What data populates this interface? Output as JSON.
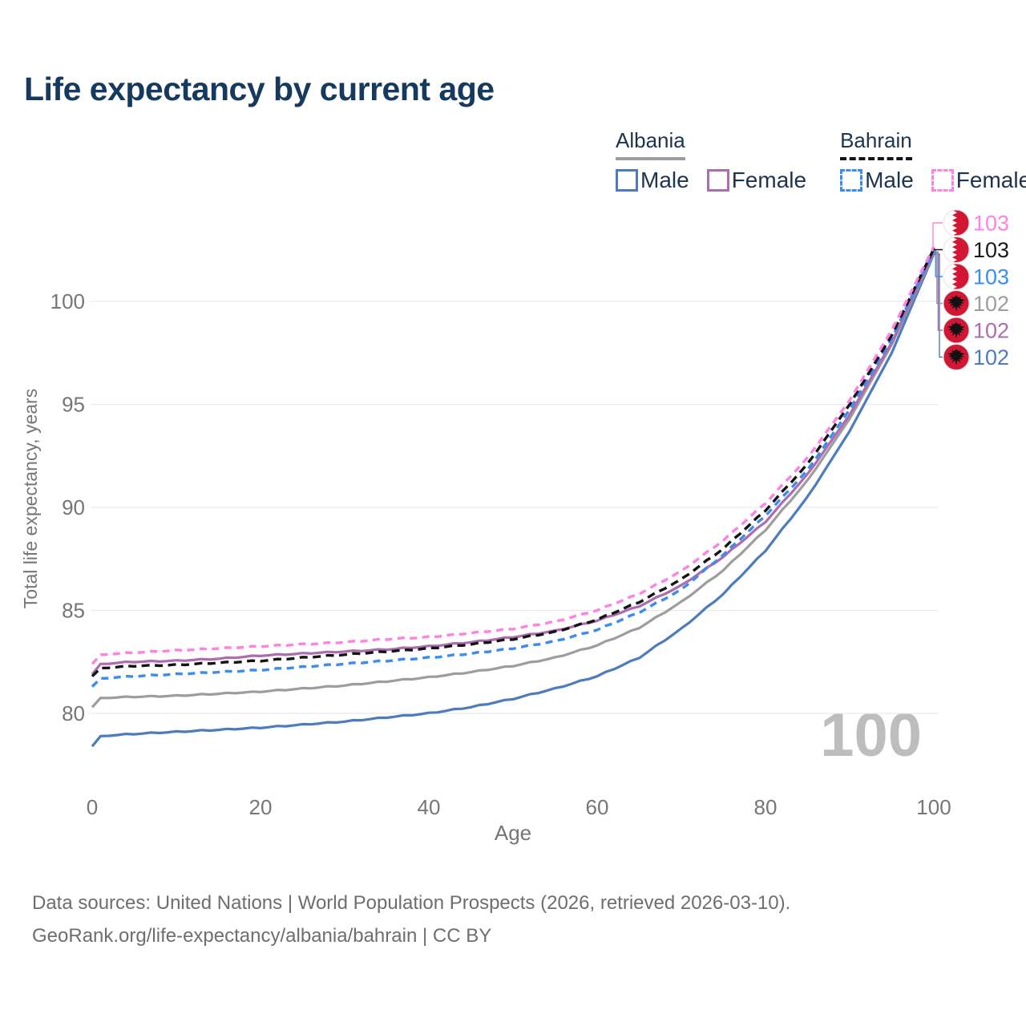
{
  "title": "Life expectancy by current age",
  "legend": {
    "groups": [
      {
        "country": "Albania",
        "line_style": "solid",
        "underline_color": "#9d9d9d",
        "items": [
          {
            "label": "Male",
            "color": "#4d7cbe",
            "dash": false
          },
          {
            "label": "Female",
            "color": "#ad6cb0",
            "dash": false
          }
        ]
      },
      {
        "country": "Bahrain",
        "line_style": "dashed",
        "underline_color": "#141414",
        "items": [
          {
            "label": "Male",
            "color": "#3c8cf0",
            "dash": true
          },
          {
            "label": "Female",
            "color": "#ff82e2",
            "dash": true
          }
        ]
      }
    ]
  },
  "chart_data": {
    "type": "line",
    "title": "Life expectancy by current age",
    "xlabel": "Age",
    "ylabel": "Total life expectancy, years",
    "xticks": [
      0,
      20,
      40,
      60,
      80,
      100
    ],
    "yticks": [
      80,
      85,
      90,
      95,
      100
    ],
    "xlim": [
      0,
      100
    ],
    "ylim": [
      78,
      103.5
    ],
    "grid": true,
    "legend_position": "top-right",
    "watermark": "100",
    "axis_color": "#767676",
    "grid_color": "#eaeaea",
    "watermark_color": "#bdbdbd",
    "x": [
      0,
      1,
      5,
      10,
      15,
      20,
      25,
      30,
      35,
      40,
      45,
      50,
      55,
      60,
      65,
      70,
      75,
      80,
      85,
      90,
      95,
      100
    ],
    "series": [
      {
        "name": "Albania Male",
        "country": "Albania",
        "sex": "Male",
        "color": "#4d7cbe",
        "dash": false,
        "flag": "albania",
        "row": 5,
        "end_label": "102",
        "values": [
          78.4,
          78.9,
          79.0,
          79.1,
          79.2,
          79.3,
          79.45,
          79.6,
          79.8,
          80.0,
          80.3,
          80.7,
          81.2,
          81.8,
          82.7,
          84.1,
          85.8,
          87.9,
          90.5,
          93.7,
          97.5,
          102.3
        ]
      },
      {
        "name": "Albania Total",
        "country": "Albania",
        "sex": "Both",
        "color": "#9d9d9d",
        "dash": false,
        "flag": "albania",
        "row": 3,
        "end_label": "102",
        "values": [
          80.3,
          80.75,
          80.8,
          80.85,
          80.95,
          81.05,
          81.2,
          81.35,
          81.55,
          81.75,
          82.0,
          82.3,
          82.7,
          83.3,
          84.15,
          85.4,
          86.95,
          88.9,
          91.3,
          94.3,
          97.9,
          102.35
        ]
      },
      {
        "name": "Albania Female",
        "country": "Albania",
        "sex": "Female",
        "color": "#ad6cb0",
        "dash": false,
        "flag": "albania",
        "row": 4,
        "end_label": "102",
        "values": [
          81.9,
          82.4,
          82.5,
          82.55,
          82.65,
          82.8,
          82.9,
          83.0,
          83.1,
          83.25,
          83.45,
          83.7,
          84.0,
          84.5,
          85.2,
          86.2,
          87.6,
          89.3,
          91.6,
          94.5,
          98.0,
          102.4
        ]
      },
      {
        "name": "Bahrain Male",
        "country": "Bahrain",
        "sex": "Male",
        "color": "#3c8cf0",
        "dash": true,
        "flag": "bahrain",
        "row": 2,
        "end_label": "103",
        "values": [
          81.3,
          81.7,
          81.8,
          81.9,
          82.0,
          82.1,
          82.25,
          82.4,
          82.55,
          82.7,
          82.9,
          83.15,
          83.5,
          84.05,
          84.9,
          86.0,
          87.7,
          89.6,
          91.8,
          94.75,
          98.2,
          102.5
        ]
      },
      {
        "name": "Bahrain Total",
        "country": "Bahrain",
        "sex": "Both",
        "color": "#141414",
        "dash": true,
        "flag": "bahrain",
        "row": 1,
        "end_label": "103",
        "values": [
          81.8,
          82.2,
          82.3,
          82.35,
          82.45,
          82.55,
          82.7,
          82.85,
          83.0,
          83.15,
          83.35,
          83.6,
          83.95,
          84.55,
          85.4,
          86.5,
          88.0,
          89.85,
          92.1,
          95.0,
          98.35,
          102.55
        ]
      },
      {
        "name": "Bahrain Female",
        "country": "Bahrain",
        "sex": "Female",
        "color": "#ff82e2",
        "dash": true,
        "flag": "bahrain",
        "row": 0,
        "end_label": "103",
        "values": [
          82.4,
          82.85,
          82.95,
          83.05,
          83.15,
          83.25,
          83.35,
          83.45,
          83.6,
          83.7,
          83.9,
          84.1,
          84.45,
          85.0,
          85.8,
          86.9,
          88.4,
          90.2,
          92.4,
          95.2,
          98.6,
          102.65
        ]
      }
    ],
    "flag_colors": {
      "red": "#d31634",
      "white": "#ffffff",
      "eagle": "#121212",
      "ring": "#e2e2e2"
    }
  },
  "footer": {
    "line1": "Data sources: United Nations | World Population Prospects (2026, retrieved 2026-03-10).",
    "line2": "GeoRank.org/life-expectancy/albania/bahrain | CC BY"
  }
}
